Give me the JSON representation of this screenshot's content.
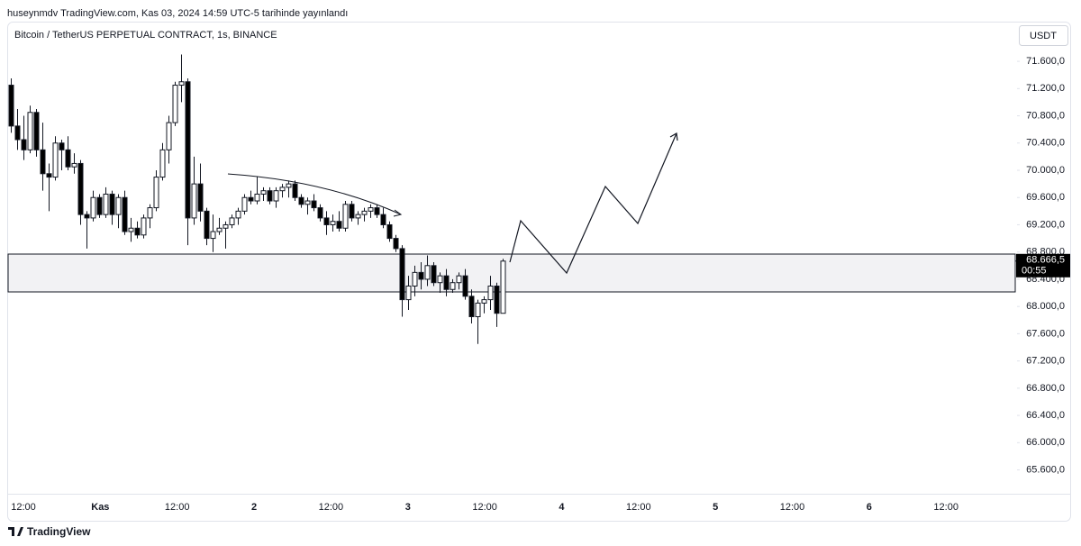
{
  "header": "huseynmdv TradingView.com, Kas 03, 2024 14:59 UTC-5 tarihinde yayınlandı",
  "footer": "TradingView",
  "chart_data": {
    "type": "candlestick",
    "title": "Bitcoin / TetherUS PERPETUAL CONTRACT, 1s, BINANCE",
    "currency": "USDT",
    "up_color": "#ffffff",
    "down_color": "#000000",
    "ylim": [
      65250,
      72170
    ],
    "yticks": [
      {
        "value": 65600,
        "label": "65.600,0"
      },
      {
        "value": 66000,
        "label": "66.000,0"
      },
      {
        "value": 66400,
        "label": "66.400,0"
      },
      {
        "value": 66800,
        "label": "66.800,0"
      },
      {
        "value": 67200,
        "label": "67.200,0"
      },
      {
        "value": 67600,
        "label": "67.600,0"
      },
      {
        "value": 68000,
        "label": "68.000,0"
      },
      {
        "value": 68400,
        "label": "68.400,0"
      },
      {
        "value": 68800,
        "label": "68.800,0"
      },
      {
        "value": 69200,
        "label": "69.200,0"
      },
      {
        "value": 69600,
        "label": "69.600,0"
      },
      {
        "value": 70000,
        "label": "70.000,0"
      },
      {
        "value": 70400,
        "label": "70.400,0"
      },
      {
        "value": 70800,
        "label": "70.800,0"
      },
      {
        "value": 71200,
        "label": "71.200,0"
      },
      {
        "value": 71600,
        "label": "71.600,0"
      }
    ],
    "x_labels": [
      "12:00",
      "Kas",
      "12:00",
      "2",
      "12:00",
      "3",
      "12:00",
      "4",
      "12:00",
      "5",
      "12:00",
      "6",
      "12:00"
    ],
    "last_price": {
      "value": 68666.5,
      "label": "68.666,5"
    },
    "countdown": "00:55",
    "open": [
      71250,
      70650,
      70450,
      70300,
      70850,
      70300,
      69950,
      69900,
      70400,
      70300,
      70050,
      70100,
      69350,
      69300,
      69600,
      69350,
      69650,
      69350,
      69600,
      69100,
      69150,
      69050,
      69300,
      69450,
      69900,
      70300,
      70700,
      71250,
      71300,
      69300,
      69800,
      69400,
      69000,
      69100,
      69150,
      69200,
      69300,
      69400,
      69600,
      69550,
      69650,
      69700,
      69550,
      69700,
      69750,
      69800,
      69600,
      69500,
      69550,
      69450,
      69300,
      69200,
      69250,
      69150,
      69500,
      69300,
      69350,
      69400,
      69450,
      69350,
      69200,
      69000,
      68850,
      68100,
      68300,
      68500,
      68400,
      68600,
      68350,
      68450,
      68250,
      68350,
      68450,
      68150,
      67850,
      68050,
      68100,
      68300,
      67900
    ],
    "high": [
      71350,
      70900,
      70800,
      70950,
      70900,
      70700,
      70100,
      70500,
      70450,
      70500,
      70250,
      70150,
      69400,
      69700,
      69650,
      69750,
      69700,
      69650,
      69700,
      69300,
      69250,
      69350,
      69500,
      70000,
      70400,
      70800,
      71300,
      71700,
      71350,
      70200,
      70100,
      69450,
      69350,
      69300,
      69250,
      69350,
      69450,
      69650,
      69700,
      69900,
      69750,
      69750,
      69750,
      69800,
      69850,
      69850,
      69650,
      69600,
      69650,
      69500,
      69400,
      69350,
      69400,
      69550,
      69550,
      69400,
      69450,
      69500,
      69500,
      69450,
      69250,
      69050,
      68900,
      68450,
      68600,
      68650,
      68750,
      68650,
      68500,
      68550,
      68400,
      68500,
      68550,
      68250,
      68100,
      68150,
      68450,
      68350,
      68700
    ],
    "low": [
      70550,
      70300,
      70150,
      70250,
      70200,
      69700,
      69400,
      69850,
      70000,
      70000,
      69950,
      69200,
      68850,
      69250,
      69300,
      69300,
      69200,
      69150,
      69050,
      68950,
      69000,
      69000,
      69150,
      69400,
      69850,
      70100,
      70650,
      71000,
      68900,
      69200,
      69250,
      68900,
      68800,
      69050,
      68850,
      69150,
      69200,
      69350,
      69500,
      69500,
      69550,
      69500,
      69450,
      69600,
      69600,
      69550,
      69450,
      69350,
      69400,
      69250,
      69050,
      69100,
      69100,
      69100,
      69250,
      69200,
      69250,
      69300,
      69300,
      69150,
      68950,
      68800,
      67850,
      67950,
      68150,
      68250,
      68300,
      68300,
      68200,
      68150,
      68200,
      68250,
      68100,
      67750,
      67450,
      67900,
      67950,
      67700,
      67900
    ],
    "close": [
      70650,
      70450,
      70300,
      70850,
      70300,
      69950,
      69900,
      70400,
      70300,
      70050,
      70100,
      69350,
      69300,
      69600,
      69350,
      69650,
      69350,
      69600,
      69100,
      69150,
      69050,
      69300,
      69450,
      69900,
      70300,
      70700,
      71250,
      71300,
      69300,
      69800,
      69400,
      69000,
      69100,
      69150,
      69200,
      69300,
      69400,
      69600,
      69550,
      69650,
      69700,
      69550,
      69700,
      69750,
      69800,
      69600,
      69500,
      69550,
      69450,
      69300,
      69200,
      69250,
      69150,
      69500,
      69300,
      69350,
      69400,
      69450,
      69350,
      69200,
      69000,
      68850,
      68100,
      68300,
      68500,
      68400,
      68600,
      68350,
      68450,
      68250,
      68350,
      68450,
      68150,
      67850,
      68050,
      68100,
      68300,
      67900,
      68666.5
    ]
  }
}
